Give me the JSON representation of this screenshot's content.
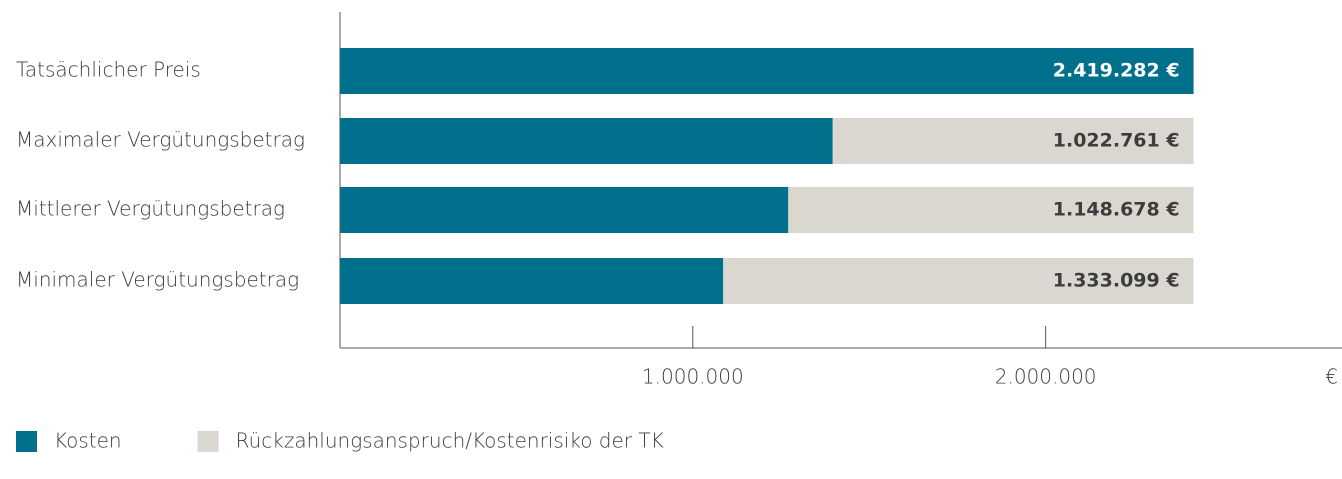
{
  "chart_data": {
    "type": "stacked-bar-horizontal",
    "categories": [
      "Tatsächlicher Preis",
      "Maximaler Vergütungsbetrag",
      "Mittlerer Vergütungsbetrag",
      "Minimaler Vergütungsbetrag"
    ],
    "series": [
      {
        "name": "Kosten",
        "color": "#00708c",
        "values": [
          2419282,
          1396521,
          1270604,
          1086183
        ],
        "value_labels": [
          "2.419.282 €",
          null,
          null,
          null
        ],
        "label_color": "#ffffff"
      },
      {
        "name": "Rückzahlungsanspruch/Kostenrisiko der TK",
        "color": "#dad7d1",
        "values": [
          0,
          1022761,
          1148678,
          1333099
        ],
        "value_labels": [
          null,
          "1.022.761 €",
          "1.148.678 €",
          "1.333.099 €"
        ],
        "label_color": "#3c3c3c"
      }
    ],
    "x_label": "€",
    "xlim": [
      0,
      2840000
    ],
    "xticks": [
      {
        "value": 1000000,
        "label": "1.000.000"
      },
      {
        "value": 2000000,
        "label": "2.000.000"
      }
    ],
    "legend": "bottom-left"
  }
}
